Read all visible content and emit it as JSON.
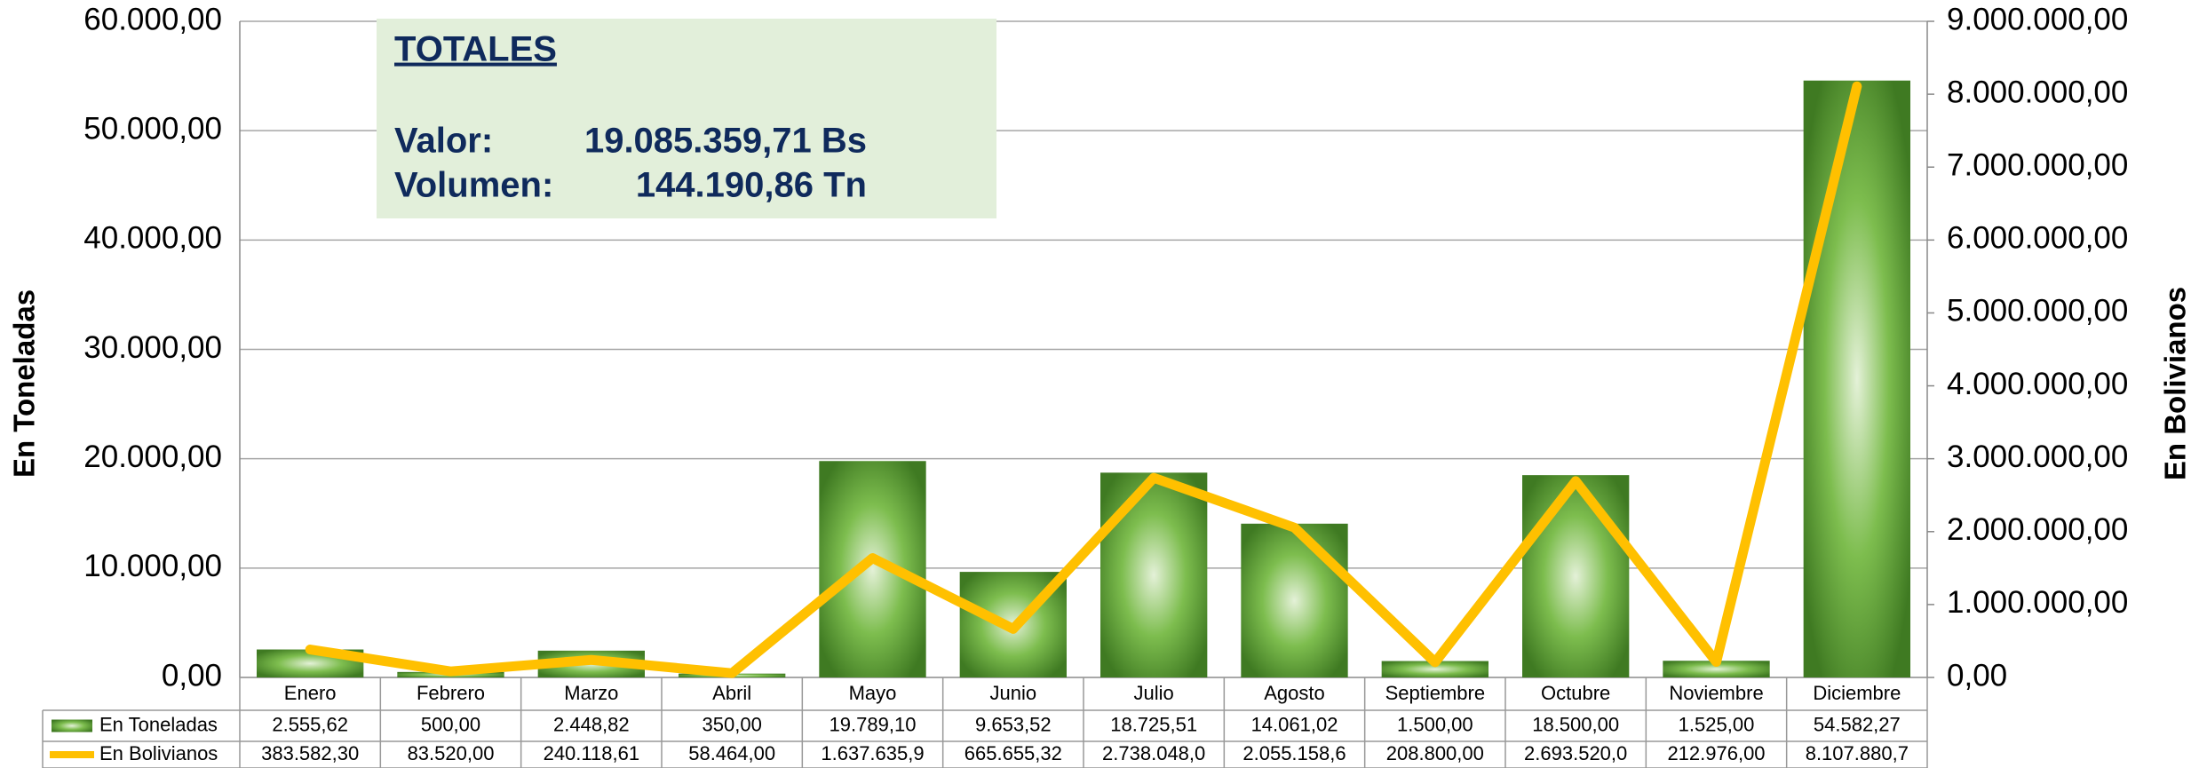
{
  "chart_data": {
    "type": "bar",
    "totals": {
      "title": "TOTALES",
      "value_label": "Valor:",
      "value": "19.085.359,71 Bs",
      "volume_label": "Volumen:",
      "volume": "144.190,86 Tn"
    },
    "ylabel": "En Toneladas",
    "y2label": "En Bolivianos",
    "categories": [
      "Enero",
      "Febrero",
      "Marzo",
      "Abril",
      "Mayo",
      "Junio",
      "Julio",
      "Agosto",
      "Septiembre",
      "Octubre",
      "Noviembre",
      "Diciembre"
    ],
    "series": [
      {
        "name": "En Toneladas",
        "type": "bar",
        "color": "#5c9e34",
        "values": [
          2555.62,
          500,
          2448.82,
          350,
          19789.1,
          9653.52,
          18725.51,
          14061.02,
          1500,
          18500,
          1525,
          54582.27
        ],
        "value_labels": [
          "2.555,62",
          "500,00",
          "2.448,82",
          "350,00",
          "19.789,10",
          "9.653,52",
          "18.725,51",
          "14.061,02",
          "1.500,00",
          "18.500,00",
          "1.525,00",
          "54.582,27"
        ]
      },
      {
        "name": "En Bolivianos",
        "type": "line",
        "axis": "y2",
        "color": "#ffc000",
        "values": [
          383582.3,
          83520,
          240118.61,
          58464,
          1637635.9,
          665655.32,
          2738048.0,
          2055158.6,
          208800,
          2693520.0,
          212976,
          8107880.7
        ],
        "value_labels": [
          "383.582,30",
          "83.520,00",
          "240.118,61",
          "58.464,00",
          "1.637.635,9",
          "665.655,32",
          "2.738.048,0",
          "2.055.158,6",
          "208.800,00",
          "2.693.520,0",
          "212.976,00",
          "8.107.880,7"
        ]
      }
    ],
    "ylim": [
      0,
      60000
    ],
    "yticks": [
      {
        "value": 0,
        "label": "0,00"
      },
      {
        "value": 10000,
        "label": "10.000,00"
      },
      {
        "value": 20000,
        "label": "20.000,00"
      },
      {
        "value": 30000,
        "label": "30.000,00"
      },
      {
        "value": 40000,
        "label": "40.000,00"
      },
      {
        "value": 50000,
        "label": "50.000,00"
      },
      {
        "value": 60000,
        "label": "60.000,00"
      }
    ],
    "y2lim": [
      0,
      9000000
    ],
    "y2ticks": [
      {
        "value": 0,
        "label": "0,00"
      },
      {
        "value": 1000000,
        "label": "1.000.000,00"
      },
      {
        "value": 2000000,
        "label": "2.000.000,00"
      },
      {
        "value": 3000000,
        "label": "3.000.000,00"
      },
      {
        "value": 4000000,
        "label": "4.000.000,00"
      },
      {
        "value": 5000000,
        "label": "5.000.000,00"
      },
      {
        "value": 6000000,
        "label": "6.000.000,00"
      },
      {
        "value": 7000000,
        "label": "7.000.000,00"
      },
      {
        "value": 8000000,
        "label": "8.000.000,00"
      },
      {
        "value": 9000000,
        "label": "9.000.000,00"
      }
    ],
    "grid": true
  }
}
